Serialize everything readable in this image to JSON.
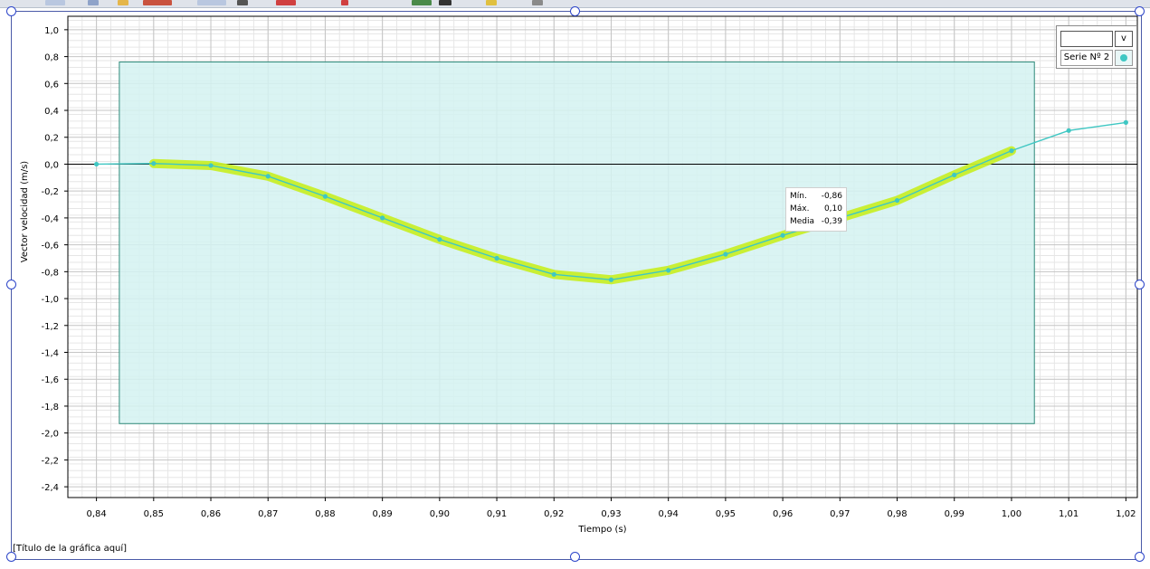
{
  "colors": {
    "series": "#3fc7c3",
    "selection": "#d4f2f1",
    "highlight": "#c8ee2a",
    "selection_line": "#2e8a7a"
  },
  "chart_data": {
    "type": "line",
    "title": "[Título de la gráfica aquí]",
    "xlabel": "Tiempo (s)",
    "ylabel": "Vector velocidad (m/s)",
    "xlim": [
      0.835,
      1.022
    ],
    "ylim": [
      -2.48,
      1.1
    ],
    "x_ticks": [
      "0,84",
      "0,85",
      "0,86",
      "0,87",
      "0,88",
      "0,89",
      "0,90",
      "0,91",
      "0,92",
      "0,93",
      "0,94",
      "0,95",
      "0,96",
      "0,97",
      "0,98",
      "0,99",
      "1,00",
      "1,01",
      "1,02"
    ],
    "y_ticks": [
      "1,0",
      "0,8",
      "0,6",
      "0,4",
      "0,2",
      "0,0",
      "-0,2",
      "-0,4",
      "-0,6",
      "-0,8",
      "-1,0",
      "-1,2",
      "-1,4",
      "-1,6",
      "-1,8",
      "-2,0",
      "-2,2",
      "-2,4"
    ],
    "grid": true,
    "legend_position": "top-right",
    "series": [
      {
        "name": "Serie Nº 2",
        "x": [
          0.84,
          0.85,
          0.86,
          0.87,
          0.88,
          0.89,
          0.9,
          0.91,
          0.92,
          0.93,
          0.94,
          0.95,
          0.96,
          0.97,
          0.98,
          0.99,
          1.0,
          1.01,
          1.02
        ],
        "y": [
          0.0,
          0.005,
          -0.01,
          -0.09,
          -0.24,
          -0.4,
          -0.56,
          -0.7,
          -0.82,
          -0.86,
          -0.79,
          -0.67,
          -0.53,
          -0.4,
          -0.27,
          -0.08,
          0.1,
          0.25,
          0.31
        ]
      }
    ],
    "selection": {
      "x_from": 0.844,
      "x_to": 1.004,
      "y_from": -1.93,
      "y_to": 0.76
    },
    "highlight_range": [
      0.85,
      1.0
    ]
  },
  "legend": {
    "dropdown_value": "",
    "dropdown_arrow": "v",
    "series_label": "Serie Nº 2"
  },
  "stats": [
    {
      "label": "Mín.",
      "value": "-0,86"
    },
    {
      "label": "Máx.",
      "value": "0,10"
    },
    {
      "label": "Media",
      "value": "-0,39"
    }
  ]
}
